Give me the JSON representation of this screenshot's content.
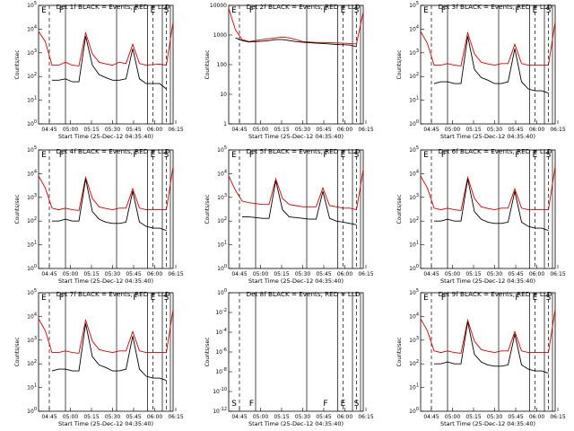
{
  "chart_data": [
    {
      "type": "line",
      "title": "Det 1f BLACK = Events, RED = LLD",
      "ylabel": "Counts/sec",
      "xlabel": "Start Time (25-Dec-12 04:35:40)",
      "x_ticks": [
        "04:45",
        "05:00",
        "05:15",
        "05:30",
        "05:45",
        "06:00",
        "06:15"
      ],
      "y_ticks": [
        "10^0",
        "10^1",
        "10^2",
        "10^3",
        "10^4",
        "10^5"
      ],
      "ylog": true,
      "ylim": [
        1,
        100000
      ],
      "x_minutes": [
        0,
        5,
        10,
        15,
        20,
        25,
        30,
        35,
        40,
        45,
        50,
        55,
        60,
        65,
        70,
        75,
        80,
        85,
        90,
        95,
        100
      ],
      "markers": [
        "E",
        "F",
        "F",
        "E",
        "S"
      ],
      "series": [
        {
          "color": "#d40000",
          "values": [
            8000,
            3000,
            300,
            300,
            400,
            300,
            280,
            7000,
            900,
            400,
            340,
            300,
            400,
            350,
            2300,
            350,
            300,
            320,
            330,
            300,
            20000
          ]
        },
        {
          "color": "#000000",
          "values": [
            null,
            null,
            70,
            70,
            80,
            60,
            60,
            5000,
            300,
            120,
            90,
            70,
            70,
            80,
            1500,
            80,
            50,
            50,
            50,
            30,
            null
          ]
        }
      ]
    },
    {
      "type": "line",
      "title": "Det 2f BLACK = Events, RED = LLD",
      "ylabel": "Counts/sec",
      "xlabel": "Start Time (25-Dec-12 04:35:40)",
      "x_ticks": [
        "04:45",
        "05:00",
        "05:15",
        "05:30",
        "05:45",
        "06:00",
        "06:15"
      ],
      "y_ticks": [
        "1",
        "10",
        "100",
        "1000",
        "10000"
      ],
      "ylog": true,
      "ylim": [
        1,
        10000
      ],
      "x_minutes": [
        0,
        5,
        10,
        15,
        20,
        25,
        30,
        35,
        40,
        45,
        50,
        55,
        60,
        65,
        70,
        75,
        80,
        85,
        90,
        95,
        100
      ],
      "markers": [
        "E",
        "F",
        "F",
        "E",
        "S"
      ],
      "series": [
        {
          "color": "#d40000",
          "values": [
            8000,
            1500,
            700,
            600,
            650,
            700,
            750,
            800,
            850,
            800,
            700,
            600,
            580,
            560,
            560,
            550,
            540,
            530,
            520,
            500,
            6000
          ]
        },
        {
          "color": "#000000",
          "values": [
            null,
            800,
            650,
            580,
            600,
            620,
            650,
            700,
            700,
            650,
            600,
            570,
            550,
            530,
            520,
            500,
            480,
            470,
            460,
            400,
            null
          ]
        }
      ]
    },
    {
      "type": "line",
      "title": "Det 3f BLACK = Events, RED = LLD",
      "ylabel": "Counts/sec",
      "xlabel": "Start Time (25-Dec-12 04:35:40)",
      "x_ticks": [
        "04:45",
        "05:00",
        "05:15",
        "05:30",
        "05:45",
        "06:00",
        "06:15"
      ],
      "y_ticks": [
        "10^0",
        "10^1",
        "10^2",
        "10^3",
        "10^4",
        "10^5"
      ],
      "ylog": true,
      "ylim": [
        1,
        100000
      ],
      "x_minutes": [
        0,
        5,
        10,
        15,
        20,
        25,
        30,
        35,
        40,
        45,
        50,
        55,
        60,
        65,
        70,
        75,
        80,
        85,
        90,
        95,
        100
      ],
      "markers": [
        "E",
        "F",
        "F",
        "E",
        "S"
      ],
      "series": [
        {
          "color": "#d40000",
          "values": [
            8000,
            2500,
            300,
            300,
            350,
            300,
            280,
            7000,
            900,
            400,
            340,
            300,
            350,
            350,
            2300,
            350,
            300,
            300,
            300,
            300,
            20000
          ]
        },
        {
          "color": "#000000",
          "values": [
            null,
            null,
            50,
            60,
            60,
            50,
            50,
            5000,
            200,
            90,
            70,
            50,
            50,
            60,
            1500,
            60,
            30,
            25,
            25,
            20,
            null
          ]
        }
      ]
    },
    {
      "type": "line",
      "title": "Det 4f BLACK = Events, RED = LLD",
      "ylabel": "Counts/sec",
      "xlabel": "Start Time (25-Dec-12 04:35:40)",
      "x_ticks": [
        "04:45",
        "05:00",
        "05:15",
        "05:30",
        "05:45",
        "06:00",
        "06:15"
      ],
      "y_ticks": [
        "10^0",
        "10^1",
        "10^2",
        "10^3",
        "10^4",
        "10^5"
      ],
      "ylog": true,
      "ylim": [
        1,
        100000
      ],
      "x_minutes": [
        0,
        5,
        10,
        15,
        20,
        25,
        30,
        35,
        40,
        45,
        50,
        55,
        60,
        65,
        70,
        75,
        80,
        85,
        90,
        95,
        100
      ],
      "markers": [
        "E",
        "F",
        "F",
        "E",
        "S"
      ],
      "series": [
        {
          "color": "#d40000",
          "values": [
            8000,
            2500,
            350,
            300,
            350,
            300,
            280,
            7000,
            900,
            400,
            340,
            300,
            350,
            350,
            2300,
            350,
            300,
            300,
            300,
            300,
            20000
          ]
        },
        {
          "color": "#000000",
          "values": [
            null,
            null,
            100,
            100,
            120,
            100,
            100,
            6000,
            250,
            120,
            90,
            80,
            80,
            90,
            1800,
            90,
            60,
            50,
            50,
            40,
            null
          ]
        }
      ]
    },
    {
      "type": "line",
      "title": "Det 5f BLACK = Events, RED = LLD",
      "ylabel": "Counts/sec",
      "xlabel": "Start Time (25-Dec-12 04:35:40)",
      "x_ticks": [
        "04:45",
        "05:00",
        "05:15",
        "05:30",
        "05:45",
        "06:00",
        "06:15"
      ],
      "y_ticks": [
        "10^0",
        "10^1",
        "10^2",
        "10^3",
        "10^4",
        "10^5"
      ],
      "ylog": true,
      "ylim": [
        1,
        100000
      ],
      "x_minutes": [
        0,
        5,
        10,
        15,
        20,
        25,
        30,
        35,
        40,
        45,
        50,
        55,
        60,
        65,
        70,
        75,
        80,
        85,
        90,
        95,
        100
      ],
      "markers": [
        "E",
        "F",
        "F",
        "E",
        "S"
      ],
      "series": [
        {
          "color": "#d40000",
          "values": [
            8000,
            2000,
            700,
            600,
            550,
            500,
            500,
            6000,
            900,
            500,
            450,
            400,
            400,
            400,
            2500,
            450,
            400,
            350,
            350,
            300,
            15000
          ]
        },
        {
          "color": "#000000",
          "values": [
            null,
            null,
            150,
            150,
            140,
            130,
            130,
            5000,
            300,
            150,
            140,
            130,
            120,
            120,
            1800,
            130,
            100,
            90,
            80,
            70,
            null
          ]
        }
      ]
    },
    {
      "type": "line",
      "title": "Det 6f BLACK = Events, RED = LLD",
      "ylabel": "Counts/sec",
      "xlabel": "Start Time (25-Dec-12 04:35:40)",
      "x_ticks": [
        "04:45",
        "05:00",
        "05:15",
        "05:30",
        "05:45",
        "06:00",
        "06:15"
      ],
      "y_ticks": [
        "10^0",
        "10^1",
        "10^2",
        "10^3",
        "10^4",
        "10^5"
      ],
      "ylog": true,
      "ylim": [
        1,
        100000
      ],
      "x_minutes": [
        0,
        5,
        10,
        15,
        20,
        25,
        30,
        35,
        40,
        45,
        50,
        55,
        60,
        65,
        70,
        75,
        80,
        85,
        90,
        95,
        100
      ],
      "markers": [
        "E",
        "F",
        "F",
        "E",
        "S"
      ],
      "series": [
        {
          "color": "#d40000",
          "values": [
            8000,
            2500,
            350,
            300,
            350,
            300,
            280,
            7000,
            900,
            400,
            340,
            300,
            350,
            350,
            2300,
            350,
            300,
            300,
            300,
            300,
            20000
          ]
        },
        {
          "color": "#000000",
          "values": [
            null,
            null,
            100,
            100,
            120,
            100,
            100,
            6000,
            250,
            120,
            90,
            80,
            80,
            90,
            1800,
            90,
            60,
            50,
            50,
            40,
            null
          ]
        }
      ]
    },
    {
      "type": "line",
      "title": "Det 7f BLACK = Events, RED = LLD",
      "ylabel": "Counts/sec",
      "xlabel": "Start Time (25-Dec-12 04:35:40)",
      "x_ticks": [
        "04:45",
        "05:00",
        "05:15",
        "05:30",
        "05:45",
        "06:00",
        "06:15"
      ],
      "y_ticks": [
        "10^0",
        "10^1",
        "10^2",
        "10^3",
        "10^4",
        "10^5"
      ],
      "ylog": true,
      "ylim": [
        1,
        100000
      ],
      "x_minutes": [
        0,
        5,
        10,
        15,
        20,
        25,
        30,
        35,
        40,
        45,
        50,
        55,
        60,
        65,
        70,
        75,
        80,
        85,
        90,
        95,
        100
      ],
      "markers": [
        "E",
        "F",
        "F",
        "E",
        "S"
      ],
      "series": [
        {
          "color": "#d40000",
          "values": [
            8000,
            2500,
            300,
            300,
            350,
            300,
            280,
            7000,
            900,
            400,
            340,
            300,
            350,
            350,
            2300,
            350,
            300,
            300,
            300,
            300,
            20000
          ]
        },
        {
          "color": "#000000",
          "values": [
            null,
            null,
            50,
            60,
            60,
            50,
            50,
            5000,
            200,
            90,
            70,
            50,
            50,
            60,
            1500,
            60,
            30,
            25,
            25,
            20,
            null
          ]
        }
      ]
    },
    {
      "type": "line",
      "title": "Det 8f BLACK = Events, RED = LLD",
      "ylabel": "Counts/sec",
      "xlabel": "Start Time (25-Dec-12 04:35:40)",
      "x_ticks": [
        "04:45",
        "05:00",
        "05:15",
        "05:30",
        "05:45",
        "06:00",
        "06:15"
      ],
      "y_ticks": [
        "10^-12",
        "10^-10",
        "10^-8",
        "10^-6",
        "10^-4",
        "10^-2",
        "10^0"
      ],
      "ylog": true,
      "ylim": [
        1e-12,
        1
      ],
      "x_minutes": [],
      "markers": [
        "S",
        "F",
        "F",
        "E",
        "S"
      ],
      "series": []
    },
    {
      "type": "line",
      "title": "Det 9f BLACK = Events, RED = LLD",
      "ylabel": "Counts/sec",
      "xlabel": "Start Time (25-Dec-12 04:35:40)",
      "x_ticks": [
        "04:45",
        "05:00",
        "05:15",
        "05:30",
        "05:45",
        "06:00",
        "06:15"
      ],
      "y_ticks": [
        "10^0",
        "10^1",
        "10^2",
        "10^3",
        "10^4",
        "10^5"
      ],
      "ylog": true,
      "ylim": [
        1,
        100000
      ],
      "x_minutes": [
        0,
        5,
        10,
        15,
        20,
        25,
        30,
        35,
        40,
        45,
        50,
        55,
        60,
        65,
        70,
        75,
        80,
        85,
        90,
        95,
        100
      ],
      "markers": [
        "E",
        "F",
        "F",
        "E",
        "S"
      ],
      "series": [
        {
          "color": "#d40000",
          "values": [
            8000,
            2500,
            350,
            300,
            350,
            300,
            280,
            7000,
            900,
            400,
            340,
            300,
            350,
            350,
            2300,
            350,
            300,
            300,
            300,
            300,
            20000
          ]
        },
        {
          "color": "#000000",
          "values": [
            null,
            null,
            100,
            100,
            120,
            100,
            100,
            6000,
            250,
            120,
            90,
            80,
            80,
            90,
            1800,
            90,
            60,
            50,
            50,
            40,
            null
          ]
        }
      ]
    }
  ]
}
